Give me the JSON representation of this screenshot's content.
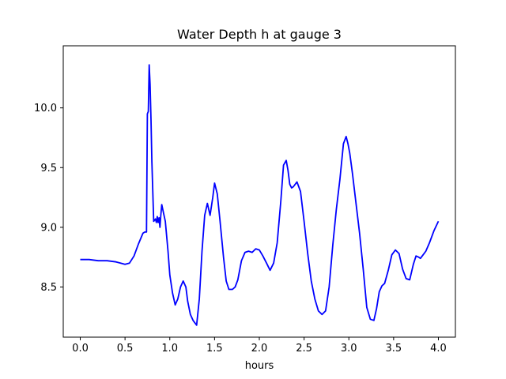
{
  "chart_data": {
    "type": "line",
    "title": "Water Depth h at gauge 3",
    "xlabel": "hours",
    "ylabel": "",
    "xlim": [
      -0.19,
      4.19
    ],
    "ylim": [
      8.08,
      10.52
    ],
    "x_ticks": [
      "0.0",
      "0.5",
      "1.0",
      "1.5",
      "2.0",
      "2.5",
      "3.0",
      "3.5",
      "4.0"
    ],
    "y_ticks": [
      "8.5",
      "9.0",
      "9.5",
      "10.0"
    ],
    "grid": false,
    "legend": "none",
    "series": [
      {
        "color": "#0000ff",
        "x": [
          0.0,
          0.1,
          0.2,
          0.3,
          0.4,
          0.45,
          0.5,
          0.55,
          0.6,
          0.65,
          0.7,
          0.72,
          0.74,
          0.75,
          0.76,
          0.77,
          0.78,
          0.79,
          0.8,
          0.82,
          0.84,
          0.85,
          0.86,
          0.87,
          0.88,
          0.89,
          0.9,
          0.91,
          0.93,
          0.95,
          0.98,
          1.0,
          1.03,
          1.06,
          1.09,
          1.12,
          1.15,
          1.18,
          1.2,
          1.23,
          1.26,
          1.3,
          1.33,
          1.36,
          1.39,
          1.42,
          1.45,
          1.48,
          1.5,
          1.53,
          1.56,
          1.6,
          1.63,
          1.66,
          1.7,
          1.73,
          1.76,
          1.8,
          1.84,
          1.88,
          1.92,
          1.96,
          2.0,
          2.04,
          2.08,
          2.12,
          2.16,
          2.2,
          2.24,
          2.27,
          2.3,
          2.32,
          2.34,
          2.36,
          2.38,
          2.42,
          2.46,
          2.5,
          2.54,
          2.58,
          2.62,
          2.66,
          2.7,
          2.74,
          2.78,
          2.82,
          2.86,
          2.9,
          2.94,
          2.97,
          2.99,
          3.01,
          3.04,
          3.08,
          3.12,
          3.16,
          3.2,
          3.24,
          3.28,
          3.31,
          3.34,
          3.37,
          3.4,
          3.44,
          3.48,
          3.52,
          3.56,
          3.6,
          3.64,
          3.68,
          3.72,
          3.75,
          3.78,
          3.8,
          3.83,
          3.86,
          3.9,
          3.95,
          4.0
        ],
        "values": [
          8.73,
          8.73,
          8.72,
          8.72,
          8.71,
          8.7,
          8.69,
          8.7,
          8.76,
          8.86,
          8.95,
          8.96,
          8.96,
          9.95,
          9.97,
          10.36,
          10.2,
          9.9,
          9.55,
          9.05,
          9.07,
          9.04,
          9.09,
          9.04,
          9.08,
          9.0,
          9.1,
          9.19,
          9.12,
          9.05,
          8.8,
          8.6,
          8.45,
          8.35,
          8.4,
          8.5,
          8.55,
          8.5,
          8.38,
          8.27,
          8.22,
          8.18,
          8.4,
          8.8,
          9.1,
          9.2,
          9.1,
          9.25,
          9.37,
          9.28,
          9.06,
          8.75,
          8.55,
          8.48,
          8.48,
          8.5,
          8.56,
          8.72,
          8.79,
          8.8,
          8.79,
          8.82,
          8.81,
          8.76,
          8.7,
          8.64,
          8.7,
          8.87,
          9.22,
          9.52,
          9.56,
          9.48,
          9.36,
          9.33,
          9.34,
          9.38,
          9.3,
          9.05,
          8.78,
          8.55,
          8.4,
          8.3,
          8.27,
          8.3,
          8.5,
          8.85,
          9.15,
          9.4,
          9.7,
          9.76,
          9.7,
          9.62,
          9.45,
          9.2,
          8.95,
          8.65,
          8.33,
          8.23,
          8.22,
          8.32,
          8.46,
          8.51,
          8.53,
          8.64,
          8.77,
          8.81,
          8.78,
          8.65,
          8.57,
          8.56,
          8.69,
          8.76,
          8.75,
          8.74,
          8.77,
          8.8,
          8.87,
          8.97,
          9.05
        ]
      }
    ]
  }
}
